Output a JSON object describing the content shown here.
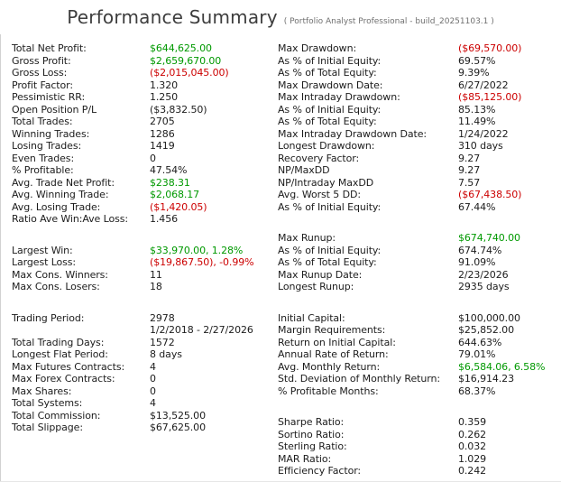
{
  "header": {
    "title": "Performance Summary",
    "subtitle": "( Portfolio Analyst Professional - build_20251103.1 )"
  },
  "colors": {
    "green": "#009900",
    "red": "#CC0000",
    "text": "#1C1C1C",
    "title": "#3D3D3D",
    "subtitle": "#707070",
    "border": "#D2D2D2"
  },
  "columns": {
    "left": {
      "sections": [
        {
          "rows": [
            {
              "label": "Total Net Profit:",
              "value": "$644,625.00",
              "tone": "green"
            },
            {
              "label": "Gross Profit:",
              "value": "$2,659,670.00",
              "tone": "green"
            },
            {
              "label": "Gross Loss:",
              "value": "($2,015,045.00)",
              "tone": "red"
            },
            {
              "label": "Profit Factor:",
              "value": "1.320"
            },
            {
              "label": "Pessimistic RR:",
              "value": "1.250"
            },
            {
              "label": "Open Position P/L",
              "value": "($3,832.50)"
            },
            {
              "label": "Total Trades:",
              "value": "2705"
            },
            {
              "label": "Winning Trades:",
              "value": "1286"
            },
            {
              "label": "Losing Trades:",
              "value": "1419"
            },
            {
              "label": "Even Trades:",
              "value": "0"
            },
            {
              "label": "% Profitable:",
              "value": "47.54%"
            },
            {
              "label": "Avg. Trade Net Profit:",
              "value": "$238.31",
              "tone": "green"
            },
            {
              "label": "Avg. Winning Trade:",
              "value": "$2,068.17",
              "tone": "green"
            },
            {
              "label": "Avg. Losing Trade:",
              "value": "($1,420.05)",
              "tone": "red"
            },
            {
              "label": "Ratio Ave Win:Ave Loss:",
              "value": "1.456"
            }
          ]
        },
        {
          "rows": [
            {
              "label": "Largest Win:",
              "value": "$33,970.00, 1.28%",
              "tone": "green"
            },
            {
              "label": "Largest Loss:",
              "value": "($19,867.50), -0.99%",
              "tone": "red"
            },
            {
              "label": "Max Cons. Winners:",
              "value": "11"
            },
            {
              "label": "Max Cons. Losers:",
              "value": "18"
            }
          ]
        },
        {
          "rows": [
            {
              "label": "Trading Period:",
              "value": "2978"
            },
            {
              "label": "",
              "value": "1/2/2018 - 2/27/2026"
            },
            {
              "label": "Total Trading Days:",
              "value": "1572"
            },
            {
              "label": "Longest Flat Period:",
              "value": "8 days"
            },
            {
              "label": "Max Futures Contracts:",
              "value": "4"
            },
            {
              "label": "Max Forex Contracts:",
              "value": "0"
            },
            {
              "label": "Max Shares:",
              "value": "0"
            },
            {
              "label": "Total Systems:",
              "value": "4"
            },
            {
              "label": "Total Commission:",
              "value": "$13,525.00"
            },
            {
              "label": "Total Slippage:",
              "value": "$67,625.00"
            }
          ]
        }
      ]
    },
    "right": {
      "sections": [
        {
          "rows": [
            {
              "label": "Max Drawdown:",
              "value": "($69,570.00)",
              "tone": "red"
            },
            {
              "label": "As % of Initial Equity:",
              "value": "69.57%"
            },
            {
              "label": "As % of Total Equity:",
              "value": "9.39%"
            },
            {
              "label": "Max Drawdown Date:",
              "value": "6/27/2022"
            },
            {
              "label": "Max Intraday Drawdown:",
              "value": "($85,125.00)",
              "tone": "red"
            },
            {
              "label": "As % of Initial Equity:",
              "value": "85.13%"
            },
            {
              "label": "As % of Total Equity:",
              "value": "11.49%"
            },
            {
              "label": "Max Intraday Drawdown Date:",
              "value": "1/24/2022"
            },
            {
              "label": "Longest Drawdown:",
              "value": "310 days"
            },
            {
              "label": "Recovery Factor:",
              "value": "9.27"
            },
            {
              "label": "NP/MaxDD",
              "value": "9.27"
            },
            {
              "label": "NP/Intraday MaxDD",
              "value": "7.57"
            },
            {
              "label": "Avg. Worst 5 DD:",
              "value": "($67,438.50)",
              "tone": "red"
            },
            {
              "label": "As % of Initial Equity:",
              "value": "67.44%"
            }
          ]
        },
        {
          "rows": [
            {
              "label": "Max Runup:",
              "value": "$674,740.00",
              "tone": "green"
            },
            {
              "label": "As % of Initial Equity:",
              "value": "674.74%"
            },
            {
              "label": "As % of Total Equity:",
              "value": "91.09%"
            },
            {
              "label": "Max Runup Date:",
              "value": "2/23/2026"
            },
            {
              "label": "Longest Runup:",
              "value": "2935 days"
            }
          ]
        },
        {
          "rows": [
            {
              "label": "Initial Capital:",
              "value": "$100,000.00"
            },
            {
              "label": "Margin Requirements:",
              "value": "$25,852.00"
            },
            {
              "label": "Return on Initial Capital:",
              "value": "644.63%"
            },
            {
              "label": "Annual Rate of Return:",
              "value": "79.01%"
            },
            {
              "label": "Avg. Monthly Return:",
              "value": "$6,584.06, 6.58%",
              "tone": "green"
            },
            {
              "label": "Std. Deviation of Monthly Return:",
              "value": "$16,914.23"
            },
            {
              "label": "% Profitable Months:",
              "value": "68.37%"
            }
          ]
        },
        {
          "rows": [
            {
              "label": "Sharpe Ratio:",
              "value": "0.359"
            },
            {
              "label": "Sortino Ratio:",
              "value": "0.262"
            },
            {
              "label": "Sterling Ratio:",
              "value": "0.032"
            },
            {
              "label": "MAR Ratio:",
              "value": "1.029"
            },
            {
              "label": "Efficiency Factor:",
              "value": "0.242"
            }
          ]
        }
      ]
    }
  }
}
